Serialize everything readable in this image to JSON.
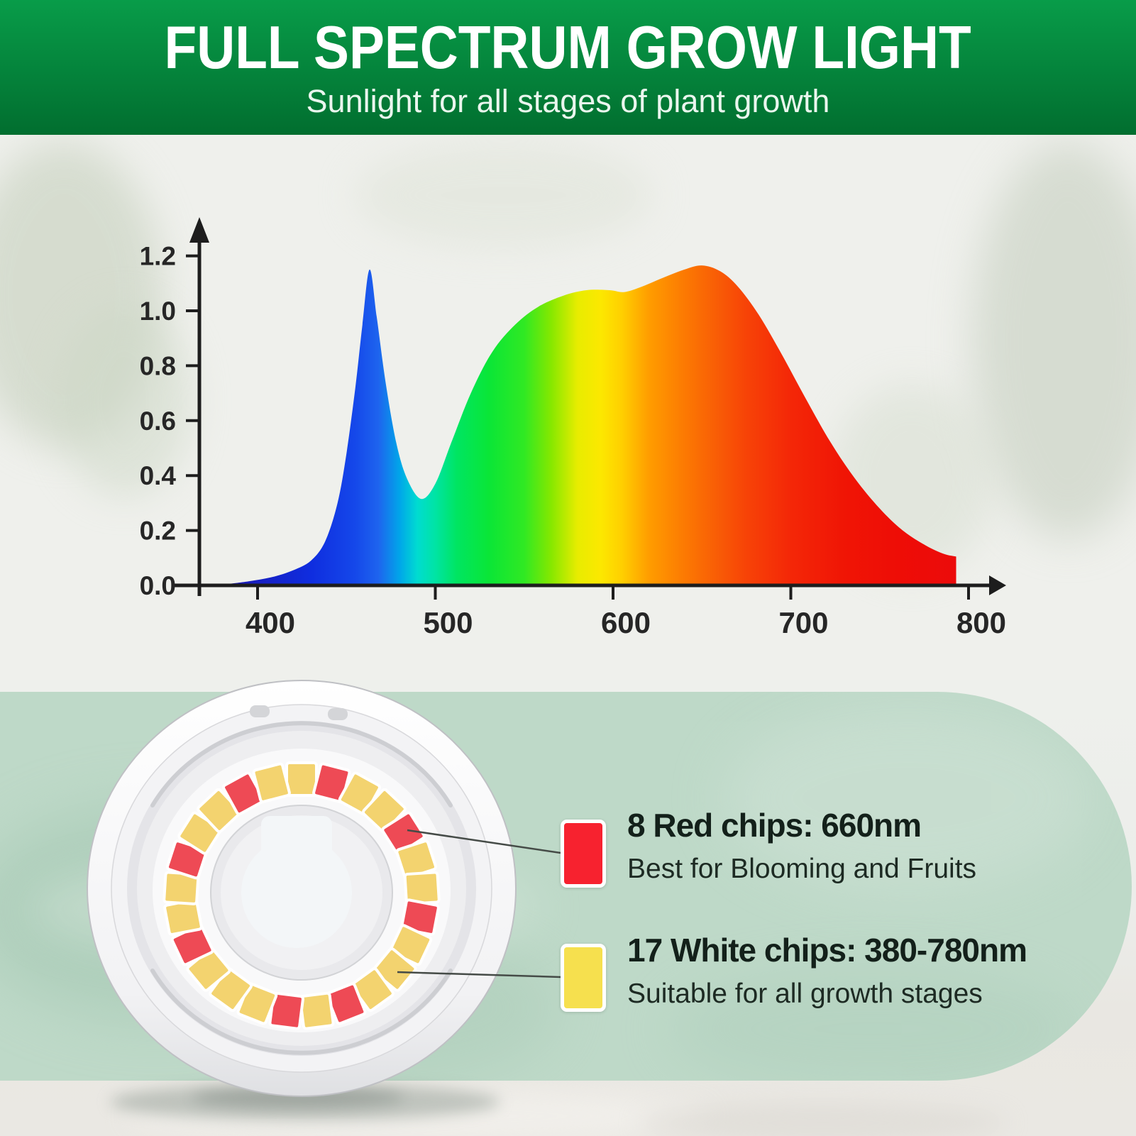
{
  "header": {
    "title": "FULL SPECTRUM GROW LIGHT",
    "subtitle": "Sunlight for all stages of plant growth",
    "bg_top": "#089c49",
    "bg_bottom": "#016e2f"
  },
  "chart_data": {
    "type": "area",
    "title": "",
    "xlabel": "",
    "ylabel": "",
    "x_ticks": [
      400,
      500,
      600,
      700,
      800
    ],
    "y_ticks": [
      "0.0",
      "0.2",
      "0.4",
      "0.6",
      "0.8",
      "1.0",
      "1.2"
    ],
    "x_range": [
      380,
      810
    ],
    "y_range": [
      0,
      1.3
    ],
    "grid": false,
    "legend_position": "none",
    "axis_color": "#1d1d1d",
    "tick_label_color": "#262626",
    "points": [
      [
        382,
        0.004
      ],
      [
        395,
        0.015
      ],
      [
        408,
        0.03
      ],
      [
        420,
        0.055
      ],
      [
        430,
        0.09
      ],
      [
        438,
        0.16
      ],
      [
        445,
        0.3
      ],
      [
        450,
        0.48
      ],
      [
        455,
        0.72
      ],
      [
        459,
        0.95
      ],
      [
        463,
        1.15
      ],
      [
        467,
        0.98
      ],
      [
        472,
        0.74
      ],
      [
        478,
        0.52
      ],
      [
        484,
        0.39
      ],
      [
        492,
        0.315
      ],
      [
        500,
        0.37
      ],
      [
        509,
        0.52
      ],
      [
        520,
        0.7
      ],
      [
        532,
        0.85
      ],
      [
        545,
        0.95
      ],
      [
        558,
        1.015
      ],
      [
        572,
        1.055
      ],
      [
        585,
        1.075
      ],
      [
        598,
        1.075
      ],
      [
        606,
        1.068
      ],
      [
        615,
        1.085
      ],
      [
        628,
        1.12
      ],
      [
        640,
        1.15
      ],
      [
        650,
        1.165
      ],
      [
        660,
        1.145
      ],
      [
        670,
        1.09
      ],
      [
        682,
        0.985
      ],
      [
        695,
        0.84
      ],
      [
        708,
        0.685
      ],
      [
        722,
        0.525
      ],
      [
        736,
        0.39
      ],
      [
        750,
        0.28
      ],
      [
        763,
        0.2
      ],
      [
        776,
        0.145
      ],
      [
        786,
        0.115
      ],
      [
        793,
        0.105
      ]
    ],
    "gradient_stops": [
      [
        382,
        "#1c17b0"
      ],
      [
        430,
        "#0f2ddf"
      ],
      [
        455,
        "#1548ea"
      ],
      [
        468,
        "#1e64ee"
      ],
      [
        480,
        "#00a6e9"
      ],
      [
        490,
        "#00dcd0"
      ],
      [
        500,
        "#00e4a4"
      ],
      [
        512,
        "#00e562"
      ],
      [
        530,
        "#0ae637"
      ],
      [
        550,
        "#30e923"
      ],
      [
        565,
        "#85e800"
      ],
      [
        580,
        "#e8ec00"
      ],
      [
        593,
        "#fce800"
      ],
      [
        605,
        "#ffcf00"
      ],
      [
        620,
        "#ff9d00"
      ],
      [
        640,
        "#fc7a02"
      ],
      [
        655,
        "#f96205"
      ],
      [
        675,
        "#f74307"
      ],
      [
        700,
        "#f42707"
      ],
      [
        730,
        "#f01505"
      ],
      [
        760,
        "#ee0d06"
      ],
      [
        793,
        "#ec0b0b"
      ]
    ]
  },
  "bulb": {
    "total_chips": 25,
    "red_chip_count": 8,
    "white_chip_count": 17,
    "red_chip_indices": [
      1,
      4,
      7,
      11,
      13,
      17,
      20,
      23
    ],
    "chip_red_color": "#ee4a55",
    "chip_white_color": "#f3d36f"
  },
  "legend": {
    "red": {
      "title": "8 Red chips: 660nm",
      "subtitle": "Best for Blooming and Fruits",
      "swatch_color": "#f7222f"
    },
    "white": {
      "title": "17 White chips: 380-780nm",
      "subtitle": "Suitable for all growth stages",
      "swatch_color": "#f6e04e"
    }
  },
  "panel_color": "#bed9c8"
}
